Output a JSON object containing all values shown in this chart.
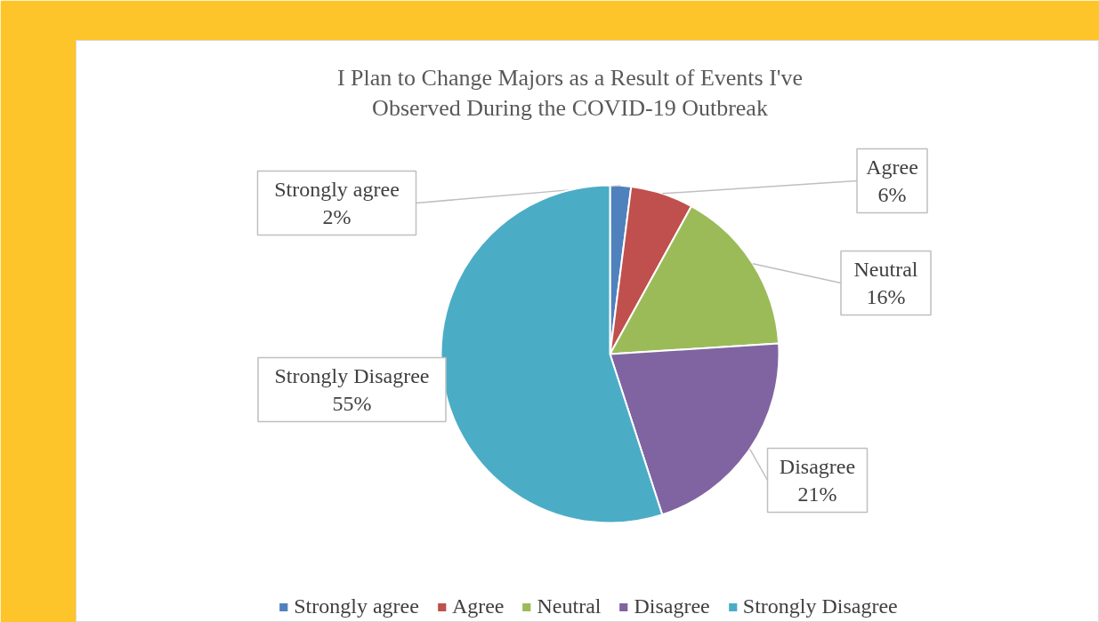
{
  "chart_data": {
    "type": "pie",
    "title": "I Plan to Change Majors as a Result of Events I've Observed During the COVID-19 Outbreak",
    "categories": [
      "Strongly agree",
      "Agree",
      "Neutral",
      "Disagree",
      "Strongly Disagree"
    ],
    "values": [
      2,
      6,
      16,
      21,
      55
    ],
    "colors": [
      "#4f81bd",
      "#c0504d",
      "#9bbb59",
      "#8064a2",
      "#4bacc6"
    ],
    "value_labels": [
      "2%",
      "6%",
      "16%",
      "21%",
      "55%"
    ],
    "legend": "bottom"
  }
}
